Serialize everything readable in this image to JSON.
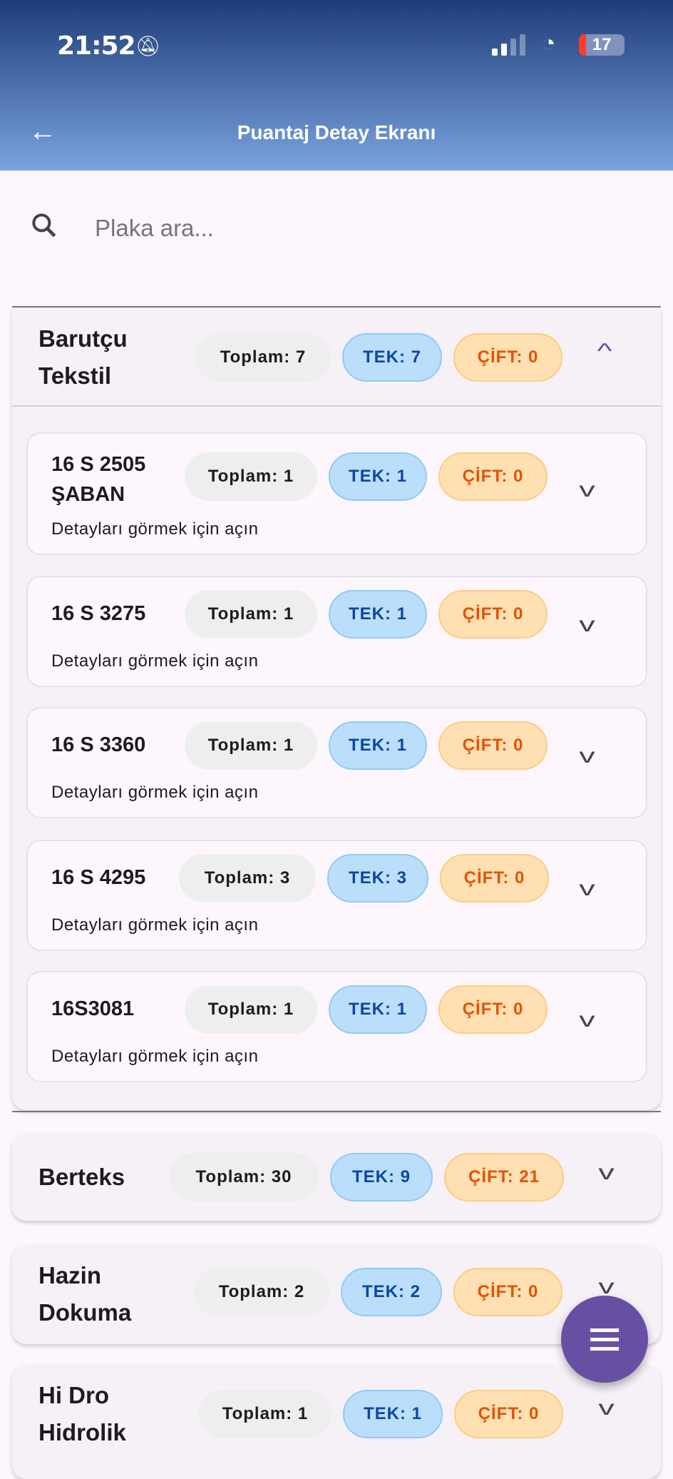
{
  "status": {
    "time": "21:52",
    "battery": "17",
    "icons": [
      "bell-off-icon",
      "signal-icon",
      "wifi-icon",
      "battery-icon"
    ]
  },
  "appbar": {
    "title": "Puantaj Detay Ekranı",
    "back_icon": "arrow-left-icon"
  },
  "search": {
    "placeholder": "Plaka ara...",
    "icon": "search-icon"
  },
  "colors": {
    "tek_bg": "#bbdefb",
    "tek_text": "#0d47a1",
    "cift_bg": "#ffe0b2",
    "cift_text": "#e65100",
    "fab": "#6750a4"
  },
  "groups": [
    {
      "name": "Barutçu Tekstil",
      "toplam": "Toplam: 7",
      "tek": "TEK: 7",
      "cift": "ÇİFT: 0",
      "expanded": true,
      "items": [
        {
          "plate": "16 S 2505 ŞABAN",
          "toplam": "Toplam: 1",
          "tek": "TEK: 1",
          "cift": "ÇİFT: 0",
          "hint": "Detayları görmek için açın"
        },
        {
          "plate": "16 S 3275",
          "toplam": "Toplam: 1",
          "tek": "TEK: 1",
          "cift": "ÇİFT: 0",
          "hint": "Detayları görmek için açın"
        },
        {
          "plate": "16 S 3360",
          "toplam": "Toplam: 1",
          "tek": "TEK: 1",
          "cift": "ÇİFT: 0",
          "hint": "Detayları görmek için açın"
        },
        {
          "plate": "16 S 4295",
          "toplam": "Toplam: 3",
          "tek": "TEK: 3",
          "cift": "ÇİFT: 0",
          "hint": "Detayları görmek için açın"
        },
        {
          "plate": "16S3081",
          "toplam": "Toplam: 1",
          "tek": "TEK: 1",
          "cift": "ÇİFT: 0",
          "hint": "Detayları görmek için açın"
        }
      ]
    },
    {
      "name": "Berteks",
      "toplam": "Toplam: 30",
      "tek": "TEK: 9",
      "cift": "ÇİFT: 21",
      "expanded": false
    },
    {
      "name": "Hazin Dokuma",
      "toplam": "Toplam: 2",
      "tek": "TEK: 2",
      "cift": "ÇİFT: 0",
      "expanded": false
    },
    {
      "name": "Hi Dro Hidrolik",
      "toplam": "Toplam: 1",
      "tek": "TEK: 1",
      "cift": "ÇİFT: 0",
      "expanded": false
    }
  ],
  "fab": {
    "icon": "menu-icon"
  }
}
